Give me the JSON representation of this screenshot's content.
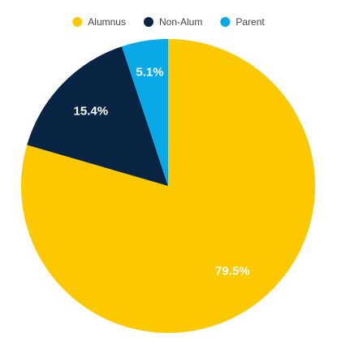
{
  "chart_data": {
    "type": "pie",
    "categories": [
      "Alumnus",
      "Non-Alum",
      "Parent"
    ],
    "values": [
      79.5,
      15.4,
      5.1
    ],
    "value_labels": [
      "79.5%",
      "15.4%",
      "5.1%"
    ],
    "colors": [
      "#fcc800",
      "#0a2444",
      "#08a9e6"
    ],
    "legend": "top"
  }
}
